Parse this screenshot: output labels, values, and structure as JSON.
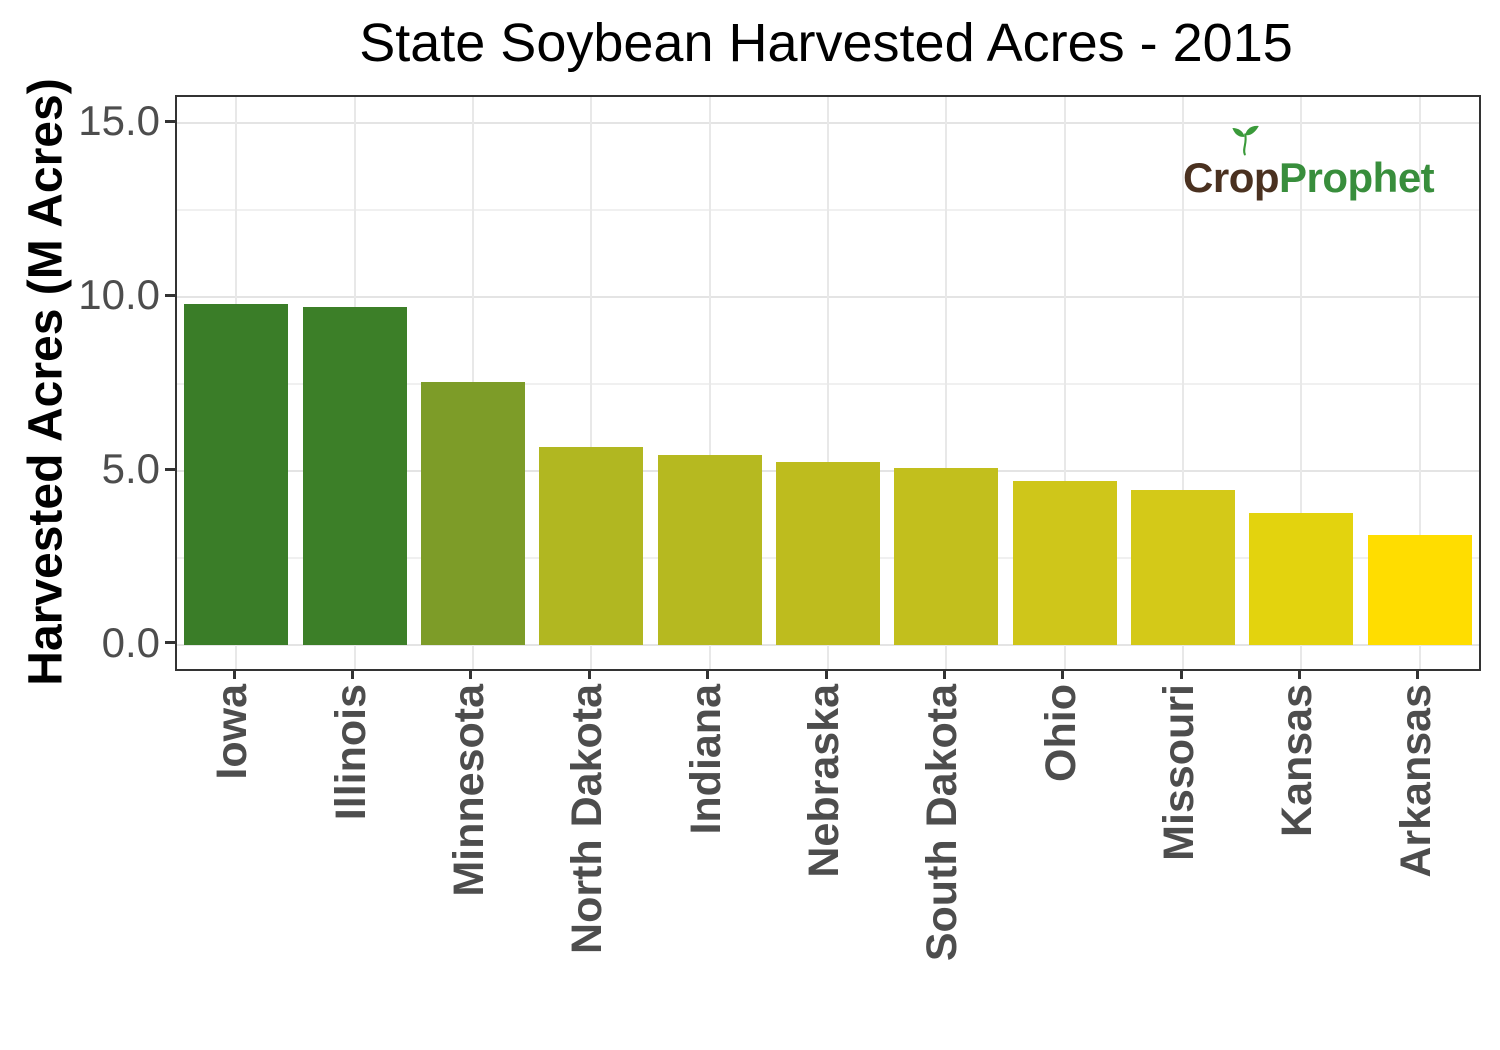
{
  "chart_data": {
    "type": "bar",
    "title": "State Soybean Harvested Acres - 2015",
    "xlabel": "",
    "ylabel": "Harvested Acres (M Acres)",
    "categories": [
      "Iowa",
      "Illinois",
      "Minnesota",
      "North Dakota",
      "Indiana",
      "Nebraska",
      "South Dakota",
      "Ohio",
      "Missouri",
      "Kansas",
      "Arkansas"
    ],
    "values": [
      9.8,
      9.7,
      7.55,
      5.7,
      5.45,
      5.25,
      5.1,
      4.7,
      4.45,
      3.8,
      3.15
    ],
    "bar_colors": [
      "#3a7d28",
      "#3c7f28",
      "#7d9c28",
      "#b1b721",
      "#b6b920",
      "#bebc1e",
      "#c2bf1d",
      "#cfc61a",
      "#d4c918",
      "#e3d30e",
      "#ffdd00"
    ],
    "ylim": [
      0,
      15.75
    ],
    "ytick_values": [
      0,
      5,
      10,
      15
    ],
    "ytick_labels": [
      "0.0",
      "5.0",
      "10.0",
      "15.0"
    ],
    "minor_gridlines": [
      2.5,
      7.5,
      12.5
    ],
    "grid": "on",
    "legend": "none",
    "bar_orientation": "vertical"
  },
  "logo": {
    "part1": "Cr",
    "part2": "o",
    "part3": "p",
    "part4": "Prophet",
    "brown": "#4a3120",
    "green": "#388e3c",
    "sprout_green": "#3a9a3a"
  },
  "colors": {
    "axis_text": "#4d4d4d",
    "panel_border": "#333333",
    "grid_major": "#e4e4e4",
    "grid_minor": "#f0f0f0",
    "title_text": "#000000"
  }
}
